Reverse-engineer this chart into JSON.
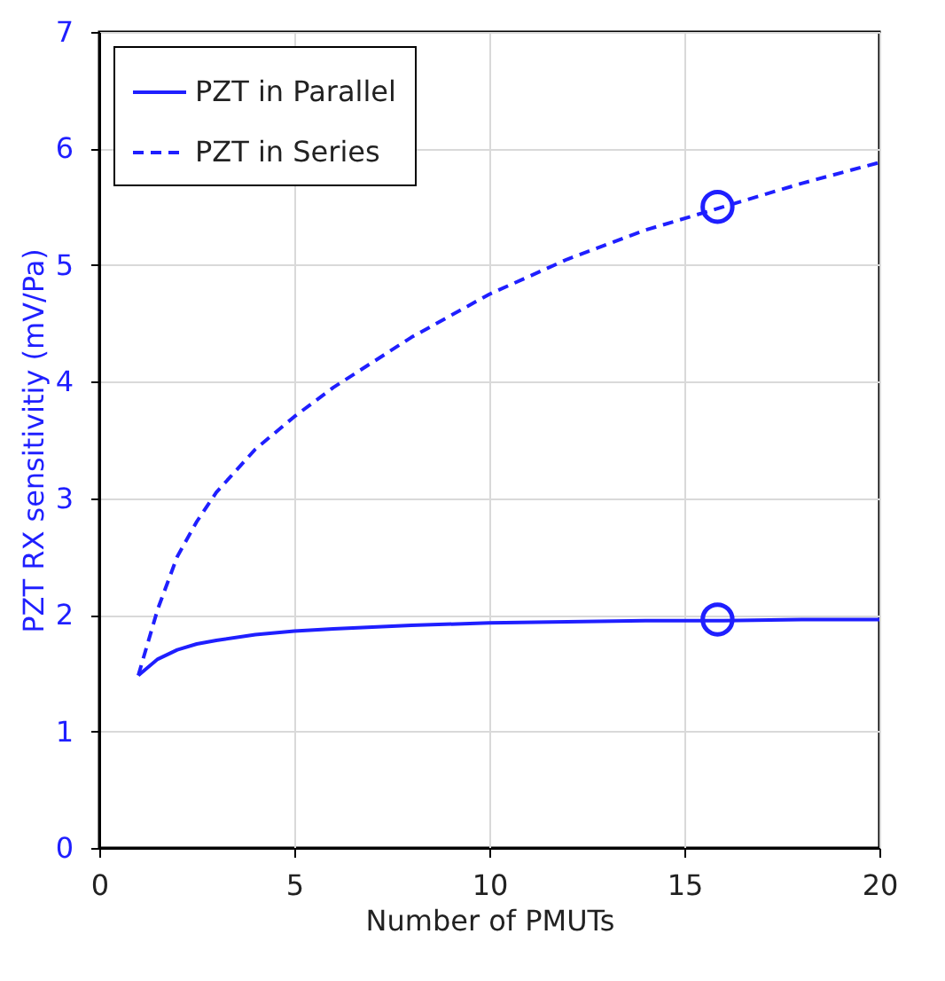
{
  "chart_data": {
    "type": "line",
    "xlabel": "Number of PMUTs",
    "ylabel": "PZT RX sensitivitiy (mV/Pa)",
    "xlim": [
      0,
      20
    ],
    "xticks": [
      0,
      5,
      10,
      15,
      20
    ],
    "ylim": [
      0,
      7
    ],
    "yticks": [
      0,
      1,
      2,
      3,
      4,
      5,
      6,
      7
    ],
    "grid": true,
    "legend": "top left",
    "series": [
      {
        "name": "PZT in Parallel",
        "color": "#1f1fff",
        "line_style": "solid",
        "x": [
          1,
          1.5,
          2,
          2.5,
          3,
          4,
          5,
          6,
          8,
          10,
          12,
          14,
          16,
          18,
          20
        ],
        "values": [
          1.48,
          1.62,
          1.7,
          1.75,
          1.78,
          1.83,
          1.86,
          1.88,
          1.91,
          1.93,
          1.94,
          1.95,
          1.95,
          1.96,
          1.96
        ]
      },
      {
        "name": "PZT in Series",
        "color": "#1f1fff",
        "line_style": "dashed",
        "x": [
          1,
          1.5,
          2,
          2.5,
          3,
          4,
          5,
          6,
          8,
          10,
          12,
          14,
          16,
          18,
          20
        ],
        "values": [
          1.48,
          2.05,
          2.5,
          2.8,
          3.05,
          3.42,
          3.7,
          3.95,
          4.38,
          4.75,
          5.05,
          5.3,
          5.5,
          5.7,
          5.88
        ]
      },
      {
        "type": "scatter",
        "marker": "circle",
        "color": "#1f1fff",
        "x": [
          15.85,
          15.85
        ],
        "values": [
          5.5,
          1.96
        ]
      }
    ]
  }
}
